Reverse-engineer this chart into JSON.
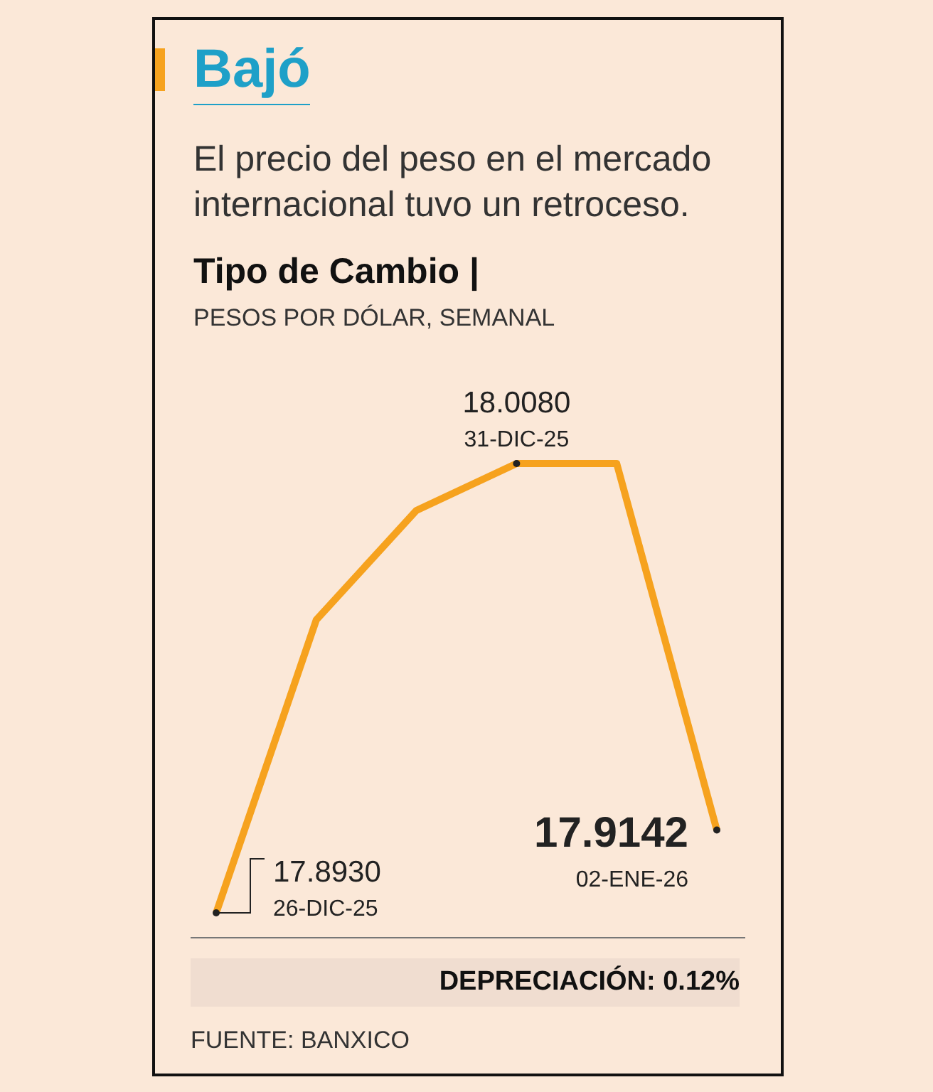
{
  "chart_data": {
    "type": "line",
    "title": "Bajó",
    "subtitle": "El precio del peso en el mercado internacional tuvo un retroceso.",
    "annotations": [
      "Tipo de Cambio |",
      "PESOS POR DÓLAR, SEMANAL",
      "DEPRECIACIÓN: 0.12%",
      "FUENTE: BANXICO",
      "26-DIC-25",
      "31-DIC-25",
      "02-ENE-26"
    ],
    "categories": [
      null,
      null,
      null,
      null,
      null,
      null
    ],
    "series": [
      {
        "color": "#f6a21e",
        "values": [
          17.893,
          17.968,
          17.996,
          18.008,
          18.008,
          17.9142
        ],
        "value_labels": [
          "17.8930",
          null,
          null,
          "18.0080",
          null,
          "17.9142"
        ]
      }
    ]
  }
}
